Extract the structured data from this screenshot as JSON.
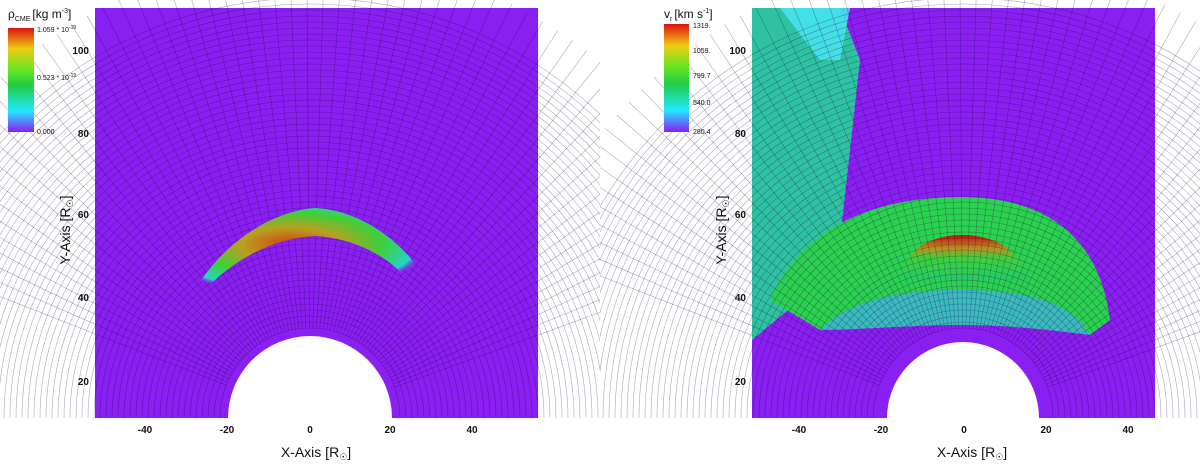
{
  "chart_data": [
    {
      "type": "heatmap",
      "xlabel": "X-Axis [R",
      "ylabel": "Y-Axis [R",
      "unit_symbol": "☉",
      "xlim": [
        -53,
        55
      ],
      "ylim": [
        11,
        110
      ],
      "xticks": [
        "-40",
        "-20",
        "0",
        "20",
        "40"
      ],
      "yticks": [
        "20",
        "40",
        "60",
        "80",
        "100"
      ],
      "colorbar": {
        "title": "ρ",
        "title_sub": "CME",
        "unit": "[kg m",
        "unit_sup": "-3",
        "unit_end": "]",
        "ticks": [
          "1.059 * 10",
          "0.523 * 10",
          "0.000"
        ],
        "tick_sup": "-19",
        "range": [
          0.0,
          1.059e-19
        ]
      },
      "colors": {
        "background": "#8a1ff2",
        "max": "#d40000",
        "min": "#8a1ff2"
      }
    },
    {
      "type": "heatmap",
      "xlabel": "X-Axis [R",
      "ylabel": "Y-Axis [R",
      "unit_symbol": "☉",
      "xlim": [
        -53,
        55
      ],
      "ylim": [
        11,
        110
      ],
      "xticks": [
        "-40",
        "-20",
        "0",
        "20",
        "40"
      ],
      "yticks": [
        "20",
        "40",
        "60",
        "80",
        "100"
      ],
      "colorbar": {
        "title": "v",
        "title_sub": "r",
        "unit": "[km s",
        "unit_sup": "-1",
        "unit_end": "]",
        "ticks": [
          "1319.",
          "1059.",
          "799.7",
          "540.0",
          "280.4"
        ],
        "range": [
          280.4,
          1319.0
        ]
      },
      "colors": {
        "background": "#8a1ff2",
        "max": "#d40000",
        "min": "#8a1ff2"
      }
    }
  ]
}
